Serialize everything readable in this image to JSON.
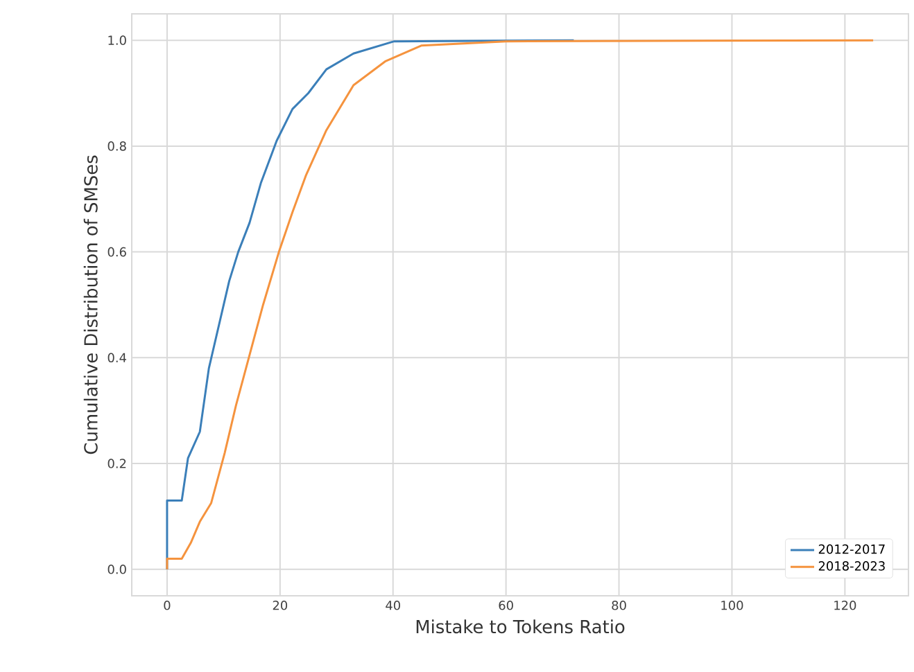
{
  "chart_data": {
    "type": "line",
    "xlabel": "Mistake to Tokens Ratio",
    "ylabel": "Cumulative Distribution of SMSes",
    "xlim": [
      -6.25,
      131.25
    ],
    "ylim": [
      -0.05,
      1.05
    ],
    "xticks": [
      0,
      20,
      40,
      60,
      80,
      100,
      120
    ],
    "yticks": [
      {
        "value": 0,
        "label": "0.0"
      },
      0.2,
      0.4,
      0.6,
      0.8,
      {
        "value": 1,
        "label": "1.0"
      }
    ],
    "grid": true,
    "legend": "bottom right",
    "series": [
      {
        "name": "2012-2017",
        "color": "#3b7fb9",
        "x": [
          0,
          0,
          2.6,
          3.7,
          5.8,
          7.4,
          11,
          12.6,
          14.6,
          16.6,
          19.4,
          22.2,
          25,
          28.2,
          33,
          40.2,
          72
        ],
        "values": [
          0,
          0.13,
          0.13,
          0.21,
          0.26,
          0.38,
          0.545,
          0.6,
          0.655,
          0.73,
          0.81,
          0.87,
          0.9,
          0.945,
          0.975,
          0.998,
          1.0
        ]
      },
      {
        "name": "2018-2023",
        "color": "#f5933e",
        "x": [
          0,
          0,
          2.6,
          4.2,
          5.8,
          7.8,
          10.2,
          12.2,
          14.6,
          17,
          19.8,
          22.2,
          24.6,
          28.2,
          33,
          38.6,
          45,
          60,
          125
        ],
        "values": [
          0,
          0.02,
          0.02,
          0.05,
          0.09,
          0.125,
          0.22,
          0.31,
          0.405,
          0.5,
          0.6,
          0.675,
          0.745,
          0.83,
          0.915,
          0.96,
          0.99,
          0.998,
          1.0
        ]
      }
    ]
  }
}
